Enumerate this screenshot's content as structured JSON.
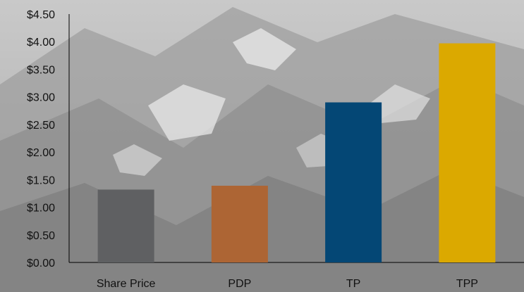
{
  "chart_data": {
    "type": "bar",
    "title": "",
    "xlabel": "",
    "ylabel": "",
    "categories": [
      "Share Price",
      "PDP",
      "TP",
      "TPP"
    ],
    "values": [
      1.32,
      1.39,
      2.9,
      3.97
    ],
    "bar_colors": [
      "#5f6062",
      "#ad6534",
      "#044775",
      "#dba900"
    ],
    "ylim": [
      0,
      4.5
    ],
    "yticks": [
      0,
      0.5,
      1.0,
      1.5,
      2.0,
      2.5,
      3.0,
      3.5,
      4.0,
      4.5
    ],
    "ytick_labels": [
      "$0.00",
      "$0.50",
      "$1.00",
      "$1.50",
      "$2.00",
      "$2.50",
      "$3.00",
      "$3.50",
      "$4.00",
      "$4.50"
    ],
    "grid": false,
    "legend": "none",
    "background": "grayscale mountain photograph"
  }
}
